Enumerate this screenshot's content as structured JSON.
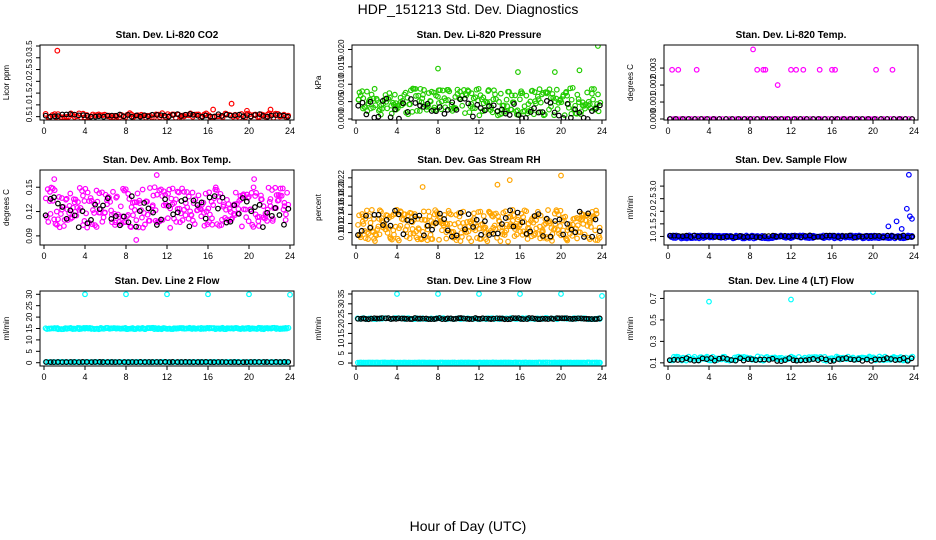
{
  "page": {
    "title": "HDP_151213  Std. Dev. Diagnostics",
    "xlabel": "Hour of Day (UTC)"
  },
  "colors": {
    "red": "#ff0000",
    "green": "#22cc00",
    "magenta": "#ff00ff",
    "orange": "#ffa500",
    "blue": "#0000ff",
    "cyan": "#00ffff",
    "black": "#000000"
  },
  "chart_data": [
    {
      "type": "scatter",
      "title": "Stan. Dev. Li-820 CO2",
      "ylabel": "Licor ppm",
      "xlim": [
        0,
        24
      ],
      "ylim": [
        0.4,
        3.5
      ],
      "xticks": [
        "0",
        "4",
        "8",
        "12",
        "16",
        "20",
        "24"
      ],
      "yticks": [
        "0.5",
        "1.0",
        "1.5",
        "2.0",
        "2.5",
        "3.0",
        "3.5"
      ],
      "series": [
        {
          "color": "red",
          "base": 0.55,
          "spread": 0.1,
          "n": 120
        },
        {
          "color": "black",
          "base": 0.55,
          "spread": 0.06,
          "n": 60
        }
      ],
      "outliers": [
        [
          1.3,
          3.3
        ],
        [
          18.3,
          1.05
        ],
        [
          16.5,
          0.8
        ],
        [
          19.8,
          0.75
        ],
        [
          22.1,
          0.8
        ]
      ]
    },
    {
      "type": "scatter",
      "title": "Stan. Dev. Li-820 Pressure",
      "ylabel": "kPa",
      "xlim": [
        0,
        24
      ],
      "ylim": [
        0,
        0.021
      ],
      "xticks": [
        "0",
        "4",
        "8",
        "12",
        "16",
        "20",
        "24"
      ],
      "yticks": [
        "0.000",
        "0.005",
        "0.010",
        "0.015",
        "0.020"
      ],
      "series": [
        {
          "color": "green",
          "base": 0.005,
          "spread": 0.004,
          "n": 260
        },
        {
          "color": "black",
          "base": 0.003,
          "spread": 0.003,
          "n": 60
        }
      ],
      "outliers": [
        [
          8.0,
          0.0145
        ],
        [
          15.8,
          0.0135
        ],
        [
          19.4,
          0.0135
        ],
        [
          23.6,
          0.021
        ],
        [
          21.8,
          0.014
        ]
      ]
    },
    {
      "type": "scatter",
      "title": "Stan. Dev. Li-820 Temp.",
      "ylabel": "degrees C",
      "xlim": [
        0,
        24
      ],
      "ylim": [
        0,
        0.0043
      ],
      "xticks": [
        "0",
        "4",
        "8",
        "12",
        "16",
        "20",
        "24"
      ],
      "yticks": [
        "0.000",
        "0.001",
        "0.002",
        "0.003"
      ],
      "series": [
        {
          "color": "magenta",
          "base": 0.0,
          "spread": 0.0,
          "n": 70
        },
        {
          "color": "black",
          "base": 0.0,
          "spread": 0.0,
          "n": 40
        }
      ],
      "outliers": [
        [
          0.4,
          0.0029
        ],
        [
          1.0,
          0.0029
        ],
        [
          2.8,
          0.0029
        ],
        [
          8.3,
          0.0041
        ],
        [
          8.7,
          0.0029
        ],
        [
          9.3,
          0.0029
        ],
        [
          9.5,
          0.0029
        ],
        [
          10.7,
          0.002
        ],
        [
          12.0,
          0.0029
        ],
        [
          12.5,
          0.0029
        ],
        [
          13.2,
          0.0029
        ],
        [
          14.8,
          0.0029
        ],
        [
          16.0,
          0.0029
        ],
        [
          16.3,
          0.0029
        ],
        [
          20.3,
          0.0029
        ],
        [
          21.9,
          0.0029
        ]
      ]
    },
    {
      "type": "scatter",
      "title": "Stan. Dev. Amb. Box Temp.",
      "ylabel": "degrees C",
      "xlim": [
        0,
        24
      ],
      "ylim": [
        0.08,
        0.17
      ],
      "xticks": [
        "0",
        "4",
        "8",
        "12",
        "16",
        "20",
        "24"
      ],
      "yticks": [
        "0.09",
        "0.12",
        "0.15"
      ],
      "series": [
        {
          "color": "magenta",
          "base": 0.125,
          "spread": 0.025,
          "n": 300
        },
        {
          "color": "black",
          "base": 0.12,
          "spread": 0.02,
          "n": 60
        }
      ],
      "outliers": [
        [
          11.0,
          0.165
        ],
        [
          1.0,
          0.16
        ],
        [
          20.5,
          0.16
        ],
        [
          9.0,
          0.085
        ]
      ]
    },
    {
      "type": "scatter",
      "title": "Stan. Dev. Gas Stream RH",
      "ylabel": "percent",
      "xlim": [
        0,
        24
      ],
      "ylim": [
        0.075,
        0.235
      ],
      "xticks": [
        "0",
        "4",
        "8",
        "12",
        "16",
        "20",
        "24"
      ],
      "yticks": [
        "0.10",
        "0.12",
        "0.14",
        "0.16",
        "0.18",
        "0.20",
        "0.22"
      ],
      "series": [
        {
          "color": "orange",
          "base": 0.115,
          "spread": 0.035,
          "n": 340
        },
        {
          "color": "black",
          "base": 0.12,
          "spread": 0.03,
          "n": 60
        }
      ],
      "outliers": [
        [
          20.0,
          0.225
        ],
        [
          15.0,
          0.215
        ],
        [
          13.8,
          0.205
        ],
        [
          6.5,
          0.2
        ]
      ]
    },
    {
      "type": "scatter",
      "title": "Stan. Dev. Sample Flow",
      "ylabel": "ml/min",
      "xlim": [
        0,
        24
      ],
      "ylim": [
        0.7,
        3.6
      ],
      "xticks": [
        "0",
        "4",
        "8",
        "12",
        "16",
        "20",
        "24"
      ],
      "yticks": [
        "1.0",
        "1.5",
        "2.0",
        "2.5",
        "3.0"
      ],
      "series": [
        {
          "color": "blue",
          "base": 0.98,
          "spread": 0.06,
          "n": 260
        },
        {
          "color": "black",
          "base": 1.0,
          "spread": 0.04,
          "n": 60
        }
      ],
      "outliers": [
        [
          23.5,
          3.45
        ],
        [
          23.3,
          2.1
        ],
        [
          23.6,
          1.8
        ],
        [
          22.3,
          1.6
        ],
        [
          21.5,
          1.4
        ],
        [
          23.8,
          1.7
        ],
        [
          22.8,
          1.3
        ]
      ]
    },
    {
      "type": "scatter",
      "title": "Stan. Dev. Line 2 Flow",
      "ylabel": "ml/min",
      "xlim": [
        0,
        24
      ],
      "ylim": [
        -1,
        31
      ],
      "xticks": [
        "0",
        "4",
        "8",
        "12",
        "16",
        "20",
        "24"
      ],
      "yticks": [
        "0",
        "5",
        "10",
        "15",
        "20",
        "25",
        "30"
      ],
      "series": [
        {
          "color": "cyan",
          "base": 15.0,
          "spread": 0.3,
          "n": 200
        },
        {
          "color": "cyan",
          "base": 0.3,
          "spread": 0.05,
          "n": 160
        },
        {
          "color": "black",
          "base": 0.3,
          "spread": 0.05,
          "n": 60
        }
      ],
      "outliers": [
        [
          4.0,
          30.0
        ],
        [
          8.0,
          30.0
        ],
        [
          12.0,
          30.0
        ],
        [
          16.0,
          30.0
        ],
        [
          20.0,
          30.0
        ],
        [
          24.0,
          29.8
        ]
      ]
    },
    {
      "type": "scatter",
      "title": "Stan. Dev. Line 3 Flow",
      "ylabel": "ml/min",
      "xlim": [
        0,
        24
      ],
      "ylim": [
        -1,
        36
      ],
      "xticks": [
        "0",
        "4",
        "8",
        "12",
        "16",
        "20",
        "24"
      ],
      "yticks": [
        "0",
        "5",
        "10",
        "15",
        "20",
        "25",
        "30",
        "35"
      ],
      "series": [
        {
          "color": "cyan",
          "base": 22.5,
          "spread": 0.3,
          "n": 120
        },
        {
          "color": "black",
          "base": 22.5,
          "spread": 0.3,
          "n": 90
        },
        {
          "color": "cyan",
          "base": 0.2,
          "spread": 0.05,
          "n": 200
        }
      ],
      "outliers": [
        [
          4.0,
          35.0
        ],
        [
          8.0,
          35.0
        ],
        [
          12.0,
          35.0
        ],
        [
          16.0,
          35.0
        ],
        [
          20.0,
          35.0
        ],
        [
          24.0,
          34.0
        ]
      ]
    },
    {
      "type": "scatter",
      "title": "Stan. Dev. Line 4 (LT) Flow",
      "ylabel": "ml/min",
      "xlim": [
        0,
        24
      ],
      "ylim": [
        0.08,
        0.76
      ],
      "xticks": [
        "0",
        "4",
        "8",
        "12",
        "16",
        "20",
        "24"
      ],
      "yticks": [
        "0.1",
        "0.3",
        "0.5",
        "0.7"
      ],
      "series": [
        {
          "color": "cyan",
          "base": 0.14,
          "spread": 0.02,
          "n": 170
        },
        {
          "color": "black",
          "base": 0.13,
          "spread": 0.015,
          "n": 60
        }
      ],
      "outliers": [
        [
          4.0,
          0.67
        ],
        [
          12.0,
          0.69
        ],
        [
          20.0,
          0.76
        ]
      ]
    }
  ]
}
